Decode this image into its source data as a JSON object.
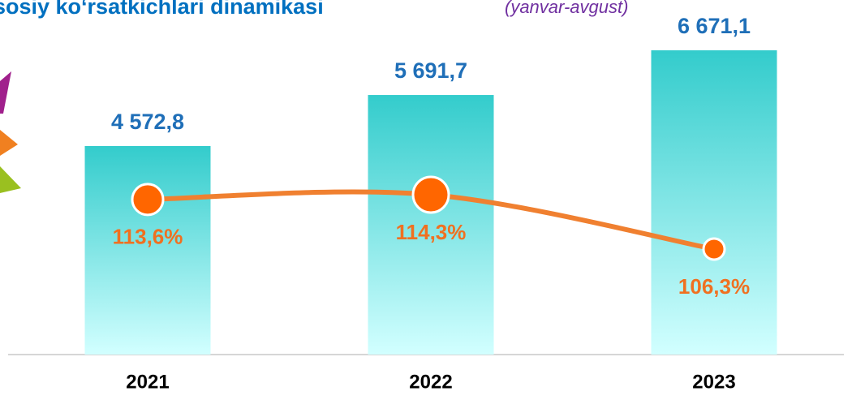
{
  "chart_data": {
    "type": "bar_line",
    "title": "sosiy ko‘rsatkichlari dinamikasi",
    "subtitle": "(yanvar-avgust)",
    "categories": [
      "2021",
      "2022",
      "2023"
    ],
    "series": [
      {
        "type": "bar",
        "color": "#33cccc",
        "values": [
          4572.8,
          5691.7,
          6671.1
        ],
        "value_labels": [
          "4 572,8",
          "5 691,7",
          "6 671,1"
        ]
      },
      {
        "type": "line",
        "color": "#f08030",
        "marker_color": "#ff6600",
        "values": [
          113.6,
          114.3,
          106.3
        ],
        "value_labels": [
          "113,6%",
          "114,3%",
          "106,3%"
        ]
      }
    ]
  }
}
